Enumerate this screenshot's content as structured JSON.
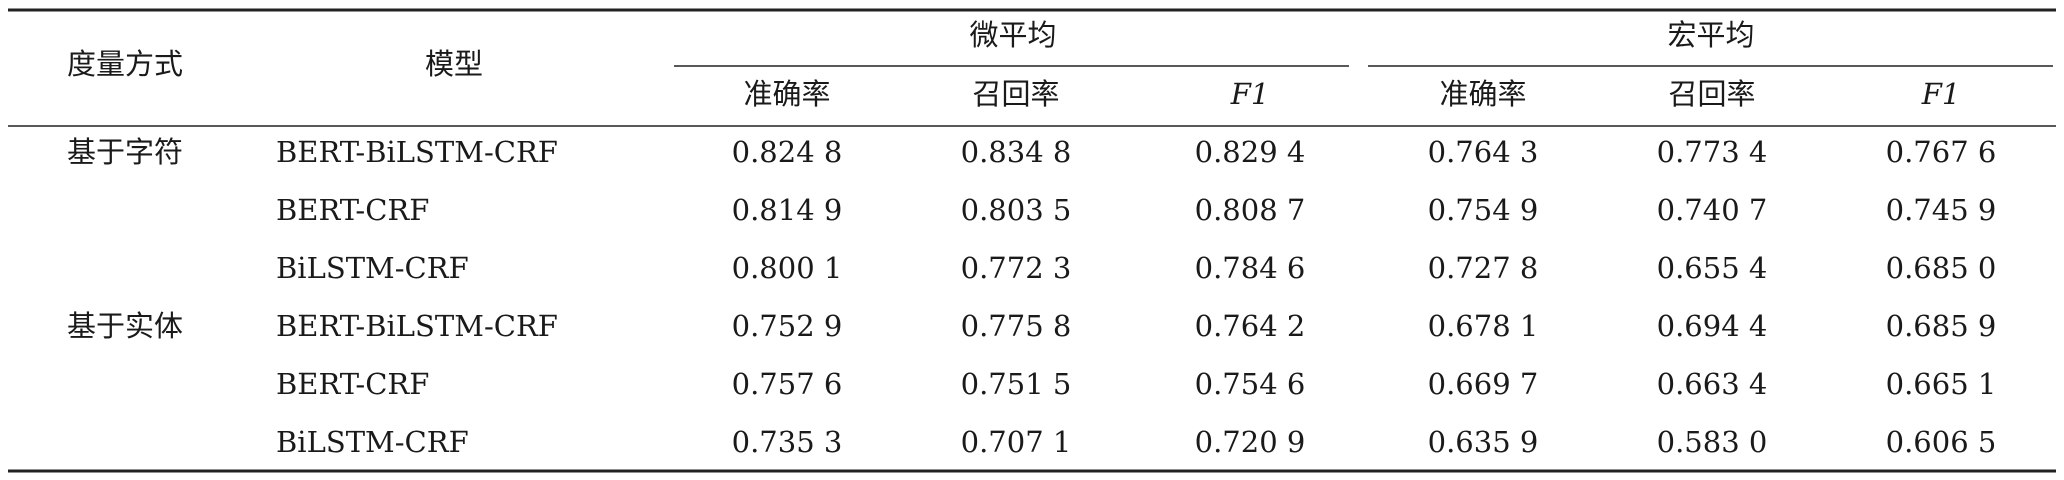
{
  "table": {
    "header": {
      "measure": "度量方式",
      "model": "模型",
      "groups": [
        {
          "label": "微平均",
          "columns": [
            "准确率",
            "召回率",
            "F1"
          ]
        },
        {
          "label": "宏平均",
          "columns": [
            "准确率",
            "召回率",
            "F1"
          ]
        }
      ]
    },
    "groups": [
      {
        "label": "基于字符",
        "rows": [
          {
            "model": "BERT-BiLSTM-CRF",
            "values": [
              "0.824 8",
              "0.834 8",
              "0.829 4",
              "0.764 3",
              "0.773 4",
              "0.767 6"
            ]
          },
          {
            "model": "BERT-CRF",
            "values": [
              "0.814 9",
              "0.803 5",
              "0.808 7",
              "0.754 9",
              "0.740 7",
              "0.745 9"
            ]
          },
          {
            "model": "BiLSTM-CRF",
            "values": [
              "0.800 1",
              "0.772 3",
              "0.784 6",
              "0.727 8",
              "0.655 4",
              "0.685 0"
            ]
          }
        ]
      },
      {
        "label": "基于实体",
        "rows": [
          {
            "model": "BERT-BiLSTM-CRF",
            "values": [
              "0.752 9",
              "0.775 8",
              "0.764 2",
              "0.678 1",
              "0.694 4",
              "0.685 9"
            ]
          },
          {
            "model": "BERT-CRF",
            "values": [
              "0.757 6",
              "0.751 5",
              "0.754 6",
              "0.669 7",
              "0.663 4",
              "0.665 1"
            ]
          },
          {
            "model": "BiLSTM-CRF",
            "values": [
              "0.735 3",
              "0.707 1",
              "0.720 9",
              "0.635 9",
              "0.583 0",
              "0.606 5"
            ]
          }
        ]
      }
    ]
  }
}
